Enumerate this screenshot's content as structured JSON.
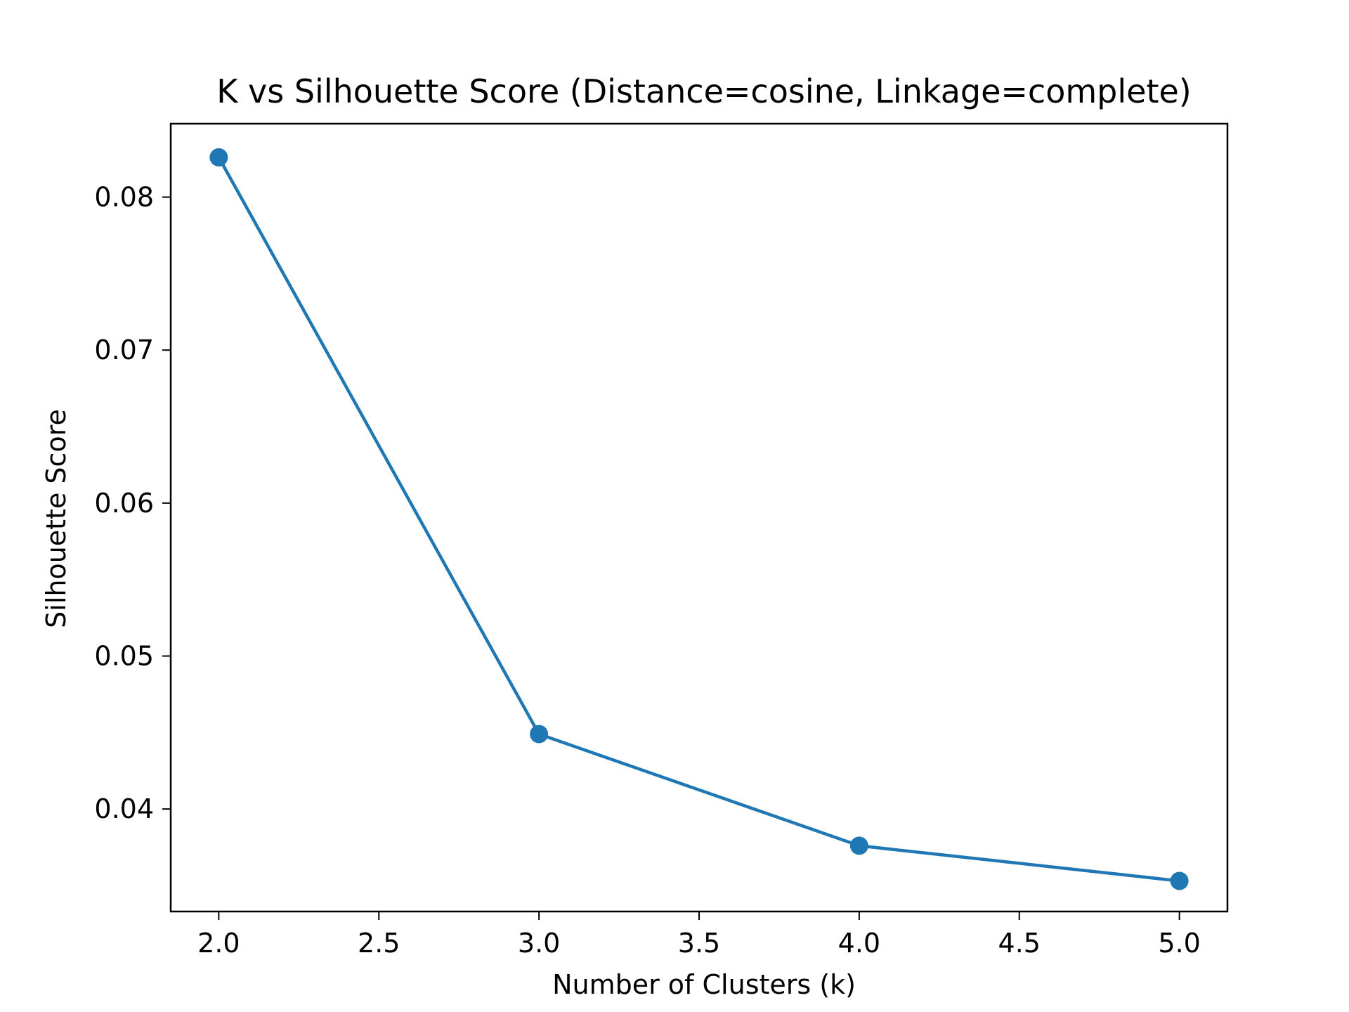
{
  "chart_data": {
    "type": "line",
    "title": "K vs Silhouette Score (Distance=cosine, Linkage=complete)",
    "xlabel": "Number of Clusters (k)",
    "ylabel": "Silhouette Score",
    "x": [
      2,
      3,
      4,
      5
    ],
    "series": [
      {
        "values": [
          0.0826,
          0.0449,
          0.0376,
          0.0353
        ],
        "color": "#1f77b4",
        "marker": "circle"
      }
    ],
    "xlim": [
      1.85,
      5.15
    ],
    "ylim": [
      0.0333,
      0.0848
    ],
    "xticks": [
      2.0,
      2.5,
      3.0,
      3.5,
      4.0,
      4.5,
      5.0
    ],
    "xtick_labels": [
      "2.0",
      "2.5",
      "3.0",
      "3.5",
      "4.0",
      "4.5",
      "5.0"
    ],
    "yticks": [
      0.04,
      0.05,
      0.06,
      0.07,
      0.08
    ],
    "ytick_labels": [
      "0.04",
      "0.05",
      "0.06",
      "0.07",
      "0.08"
    ],
    "grid": false,
    "legend": "none"
  }
}
